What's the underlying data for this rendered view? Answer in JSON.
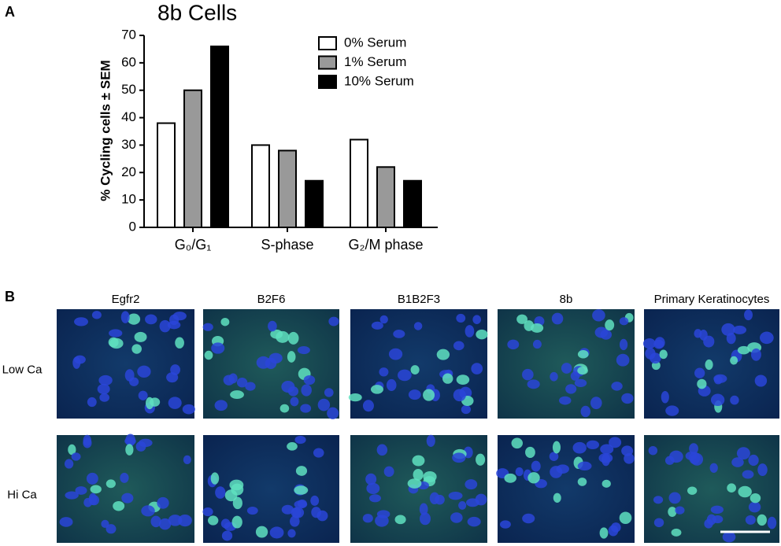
{
  "panel_labels": [
    "A",
    "B"
  ],
  "chart_data": {
    "type": "bar",
    "title": "8b Cells",
    "y_label": "% Cycling cells ± SEM",
    "categories": [
      "G₀/G₁",
      "S-phase",
      "G₂/M phase"
    ],
    "series": [
      {
        "name": "0% Serum",
        "color": "#ffffff",
        "values": [
          38,
          30,
          32
        ]
      },
      {
        "name": "1% Serum",
        "color": "#999999",
        "values": [
          50,
          28,
          22
        ]
      },
      {
        "name": "10% Serum",
        "color": "#000000",
        "values": [
          66,
          17,
          17
        ]
      }
    ],
    "ylim": [
      0,
      70
    ],
    "yticks": [
      0,
      10,
      20,
      30,
      40,
      50,
      60,
      70
    ],
    "grid": false,
    "legend": "upper right"
  },
  "micrographs": {
    "columns": [
      "Egfr2",
      "B2F6",
      "B1B2F3",
      "8b",
      "Primary Keratinocytes"
    ],
    "rows": [
      "Low Ca",
      "Hi Ca"
    ]
  }
}
